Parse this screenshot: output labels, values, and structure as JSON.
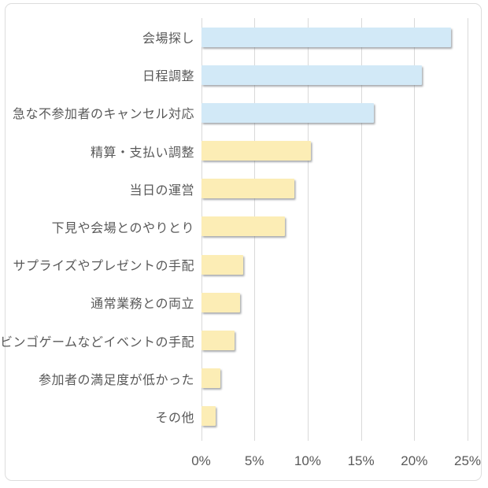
{
  "chart_data": {
    "type": "bar",
    "orientation": "horizontal",
    "title": "",
    "xlabel": "",
    "ylabel": "",
    "unit": "%",
    "categories": [
      "会場探し",
      "日程調整",
      "急な不参加者のキャンセル対応",
      "精算・支払い調整",
      "当日の運営",
      "下見や会場とのやりとり",
      "サプライズやプレゼントの手配",
      "通常業務との両立",
      "ビンゴゲームなどイベントの手配",
      "参加者の満足度が低かった",
      "その他"
    ],
    "values": [
      23.4,
      20.7,
      16.2,
      10.3,
      8.7,
      7.8,
      3.9,
      3.6,
      3.1,
      1.8,
      1.3
    ],
    "bar_colors": [
      "#d2e9f7",
      "#d2e9f7",
      "#d2e9f7",
      "#fcedb5",
      "#fcedb5",
      "#fcedb5",
      "#fcedb5",
      "#fcedb5",
      "#fcedb5",
      "#fcedb5",
      "#fcedb5"
    ],
    "xlim": [
      0,
      25
    ],
    "x_ticks": [
      "0%",
      "5%",
      "10%",
      "15%",
      "20%",
      "25%"
    ],
    "x_tick_values": [
      0,
      5,
      10,
      15,
      20,
      25
    ],
    "grid": true,
    "legend": false
  },
  "style": {
    "blue_bar_color": "#d2e9f7",
    "yellow_bar_color": "#fcedb5",
    "grid_color": "#d9d9d9",
    "text_color": "#595959",
    "frame_border_color": "#dddddd",
    "background_color": "#ffffff"
  }
}
